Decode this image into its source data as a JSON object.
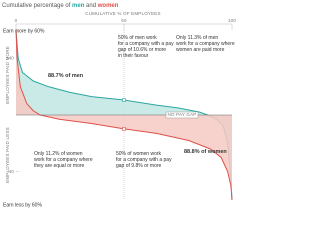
{
  "chart_data": {
    "type": "line",
    "title": [
      "Cumulative percentage of ",
      "men",
      " and ",
      "women"
    ],
    "x_label": "CUMULATIVE % OF EMPLOYEES",
    "y_label_top": "EMPLOYEES PAID MORE",
    "y_label_bottom": "EMPLOYEES PAID LESS",
    "top_note": "Earn more by 60%",
    "bottom_note": "Earn less by 60%",
    "zero_label": "NO PAY GAP",
    "xlim": [
      0,
      100
    ],
    "xticks": [
      0,
      50,
      100
    ],
    "ylim": [
      -60,
      60
    ],
    "yticks": [
      {
        "value": 40,
        "label": "+40"
      },
      {
        "value": -40,
        "label": "-40"
      }
    ],
    "series": [
      {
        "name": "men",
        "color": "#2aa6a0",
        "fill": "#bfe6e2",
        "x": [
          0,
          1,
          3,
          8,
          15,
          25,
          35,
          50,
          65,
          75,
          85,
          88.7,
          93,
          96,
          98,
          99.5,
          100
        ],
        "values": [
          60,
          40,
          30,
          24,
          20,
          16,
          13,
          10.6,
          7,
          5,
          2,
          0,
          -3,
          -8,
          -20,
          -45,
          -60
        ]
      },
      {
        "name": "women",
        "color": "#e0504a",
        "fill": "#f6c9c2",
        "x": [
          0,
          0.5,
          2,
          5,
          8,
          11.2,
          20,
          35,
          50,
          65,
          80,
          90,
          95,
          98,
          99.5,
          100
        ],
        "values": [
          60,
          40,
          20,
          8,
          3,
          0,
          -3,
          -6,
          -9.8,
          -13,
          -18,
          -24,
          -30,
          -40,
          -50,
          -60
        ]
      }
    ],
    "annotations": [
      {
        "lines": [
          "50% of men work",
          "for a company with a pay",
          "gap of 10.6% or more",
          "in their favour"
        ]
      },
      {
        "lines": [
          "Only 11.3% of men",
          "work for a company where",
          "women are paid more"
        ]
      },
      {
        "lines": [
          "88.7% of men"
        ]
      },
      {
        "lines": [
          "88.8% of women"
        ]
      },
      {
        "lines": [
          "Only 11.2% of women",
          "work for a company where",
          "they are equal or more"
        ]
      },
      {
        "lines": [
          "50% of women work",
          "for a company with a pay",
          "gap of 9.8% or more"
        ]
      }
    ]
  }
}
